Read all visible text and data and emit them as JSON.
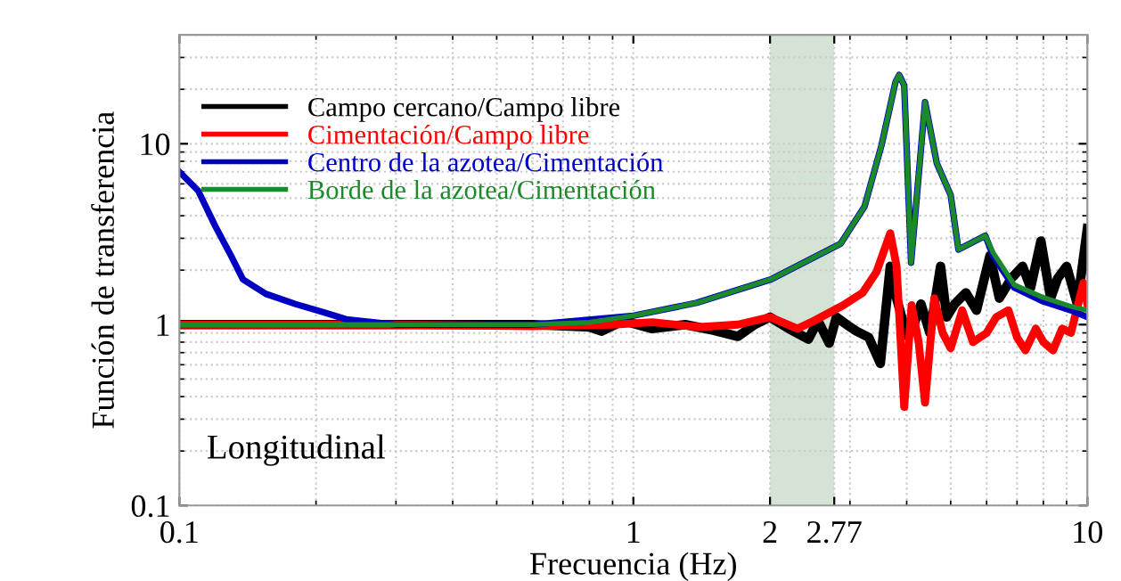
{
  "chart_data": {
    "type": "line",
    "xlabel": "Frecuencia (Hz)",
    "ylabel": "Función de transferencia",
    "log": "xy",
    "grid": true,
    "legend": "top left",
    "line_style": "solid",
    "marker": "none",
    "xlim": [
      0.1,
      10
    ],
    "xticks": [
      0.1,
      1,
      2,
      2.77,
      10
    ],
    "ylim": [
      0.1,
      40
    ],
    "yticks": [
      0.1,
      1,
      10
    ],
    "bands": [
      {
        "axis": "x",
        "from": 2,
        "to": 2.77,
        "color": "#d5e3d5"
      }
    ],
    "annotations": [
      {
        "text": "Longitudinal"
      }
    ],
    "series": [
      {
        "name": "Campo cercano/Campo libre",
        "color": "#000000",
        "x": [
          0.1,
          0.3,
          0.6,
          0.8,
          0.85,
          0.95,
          1.1,
          1.3,
          1.5,
          1.7,
          1.85,
          2.0,
          2.2,
          2.43,
          2.55,
          2.7,
          2.8,
          2.95,
          3.1,
          3.3,
          3.5,
          3.68,
          3.8,
          4.0,
          4.15,
          4.3,
          4.5,
          4.75,
          4.9,
          5.1,
          5.4,
          5.7,
          6.1,
          6.4,
          6.8,
          7.2,
          7.5,
          7.9,
          8.3,
          8.6,
          9.0,
          9.5,
          10
        ],
        "values": [
          1.0,
          1.0,
          1.0,
          0.97,
          0.92,
          1.05,
          0.95,
          1.0,
          0.93,
          0.86,
          1.0,
          1.1,
          0.95,
          0.83,
          1.05,
          0.79,
          1.1,
          1.0,
          0.92,
          0.85,
          0.61,
          2.1,
          1.4,
          0.87,
          1.0,
          1.3,
          0.9,
          2.1,
          1.1,
          1.3,
          1.5,
          1.2,
          2.4,
          1.4,
          1.8,
          2.1,
          1.6,
          2.9,
          1.4,
          1.8,
          2.1,
          1.3,
          3.4
        ]
      },
      {
        "name": "Cimentación/Campo libre",
        "color": "#ff0000",
        "x": [
          0.1,
          0.3,
          0.6,
          0.9,
          1.1,
          1.4,
          1.7,
          2.0,
          2.3,
          2.5,
          2.9,
          3.2,
          3.43,
          3.68,
          3.8,
          3.95,
          4.1,
          4.25,
          4.39,
          4.6,
          4.8,
          5.0,
          5.3,
          5.6,
          6.0,
          6.3,
          6.7,
          7.0,
          7.3,
          7.7,
          8.0,
          8.4,
          8.8,
          9.2,
          9.8,
          10
        ],
        "values": [
          1.0,
          1.0,
          0.98,
          1.0,
          1.03,
          0.97,
          1.0,
          1.1,
          0.95,
          1.05,
          1.28,
          1.5,
          1.95,
          3.2,
          2.1,
          0.35,
          1.28,
          0.8,
          0.37,
          1.4,
          0.9,
          0.74,
          1.2,
          0.8,
          0.9,
          1.1,
          1.2,
          0.85,
          0.72,
          0.95,
          0.8,
          0.72,
          0.95,
          0.9,
          1.7,
          1.3
        ]
      },
      {
        "name": "Centro de la azotea/Cimentación",
        "color": "#0000c0",
        "x": [
          0.1,
          0.11,
          0.12,
          0.13,
          0.138,
          0.155,
          0.18,
          0.208,
          0.233,
          0.3,
          0.6,
          1.0,
          1.38,
          2.01,
          2.86,
          3.23,
          3.52,
          3.78,
          3.85,
          3.95,
          4.09,
          4.39,
          4.66,
          5.0,
          5.2,
          5.96,
          6.2,
          6.9,
          7.95,
          9.2,
          10
        ],
        "values": [
          7.0,
          5.5,
          3.5,
          2.4,
          1.78,
          1.48,
          1.3,
          1.17,
          1.07,
          1.0,
          1.0,
          1.12,
          1.32,
          1.78,
          2.8,
          4.5,
          9.8,
          22,
          24,
          21,
          2.2,
          17,
          7.8,
          5.2,
          2.6,
          3.1,
          2.4,
          1.6,
          1.35,
          1.2,
          1.1
        ]
      },
      {
        "name": "Borde de la azotea/Cimentación",
        "color": "#1a8a2a",
        "x": [
          0.1,
          0.3,
          0.6,
          0.8,
          1.0,
          1.38,
          2.01,
          2.86,
          3.23,
          3.52,
          3.78,
          3.85,
          3.95,
          4.09,
          4.39,
          4.66,
          5.0,
          5.2,
          5.96,
          6.2,
          6.9,
          7.95,
          9.2,
          10
        ],
        "values": [
          1.0,
          1.0,
          1.0,
          1.03,
          1.12,
          1.32,
          1.78,
          2.8,
          4.5,
          9.8,
          22,
          24,
          21,
          2.2,
          17,
          7.8,
          5.2,
          2.6,
          3.1,
          2.5,
          1.66,
          1.42,
          1.26,
          1.2
        ]
      }
    ]
  }
}
